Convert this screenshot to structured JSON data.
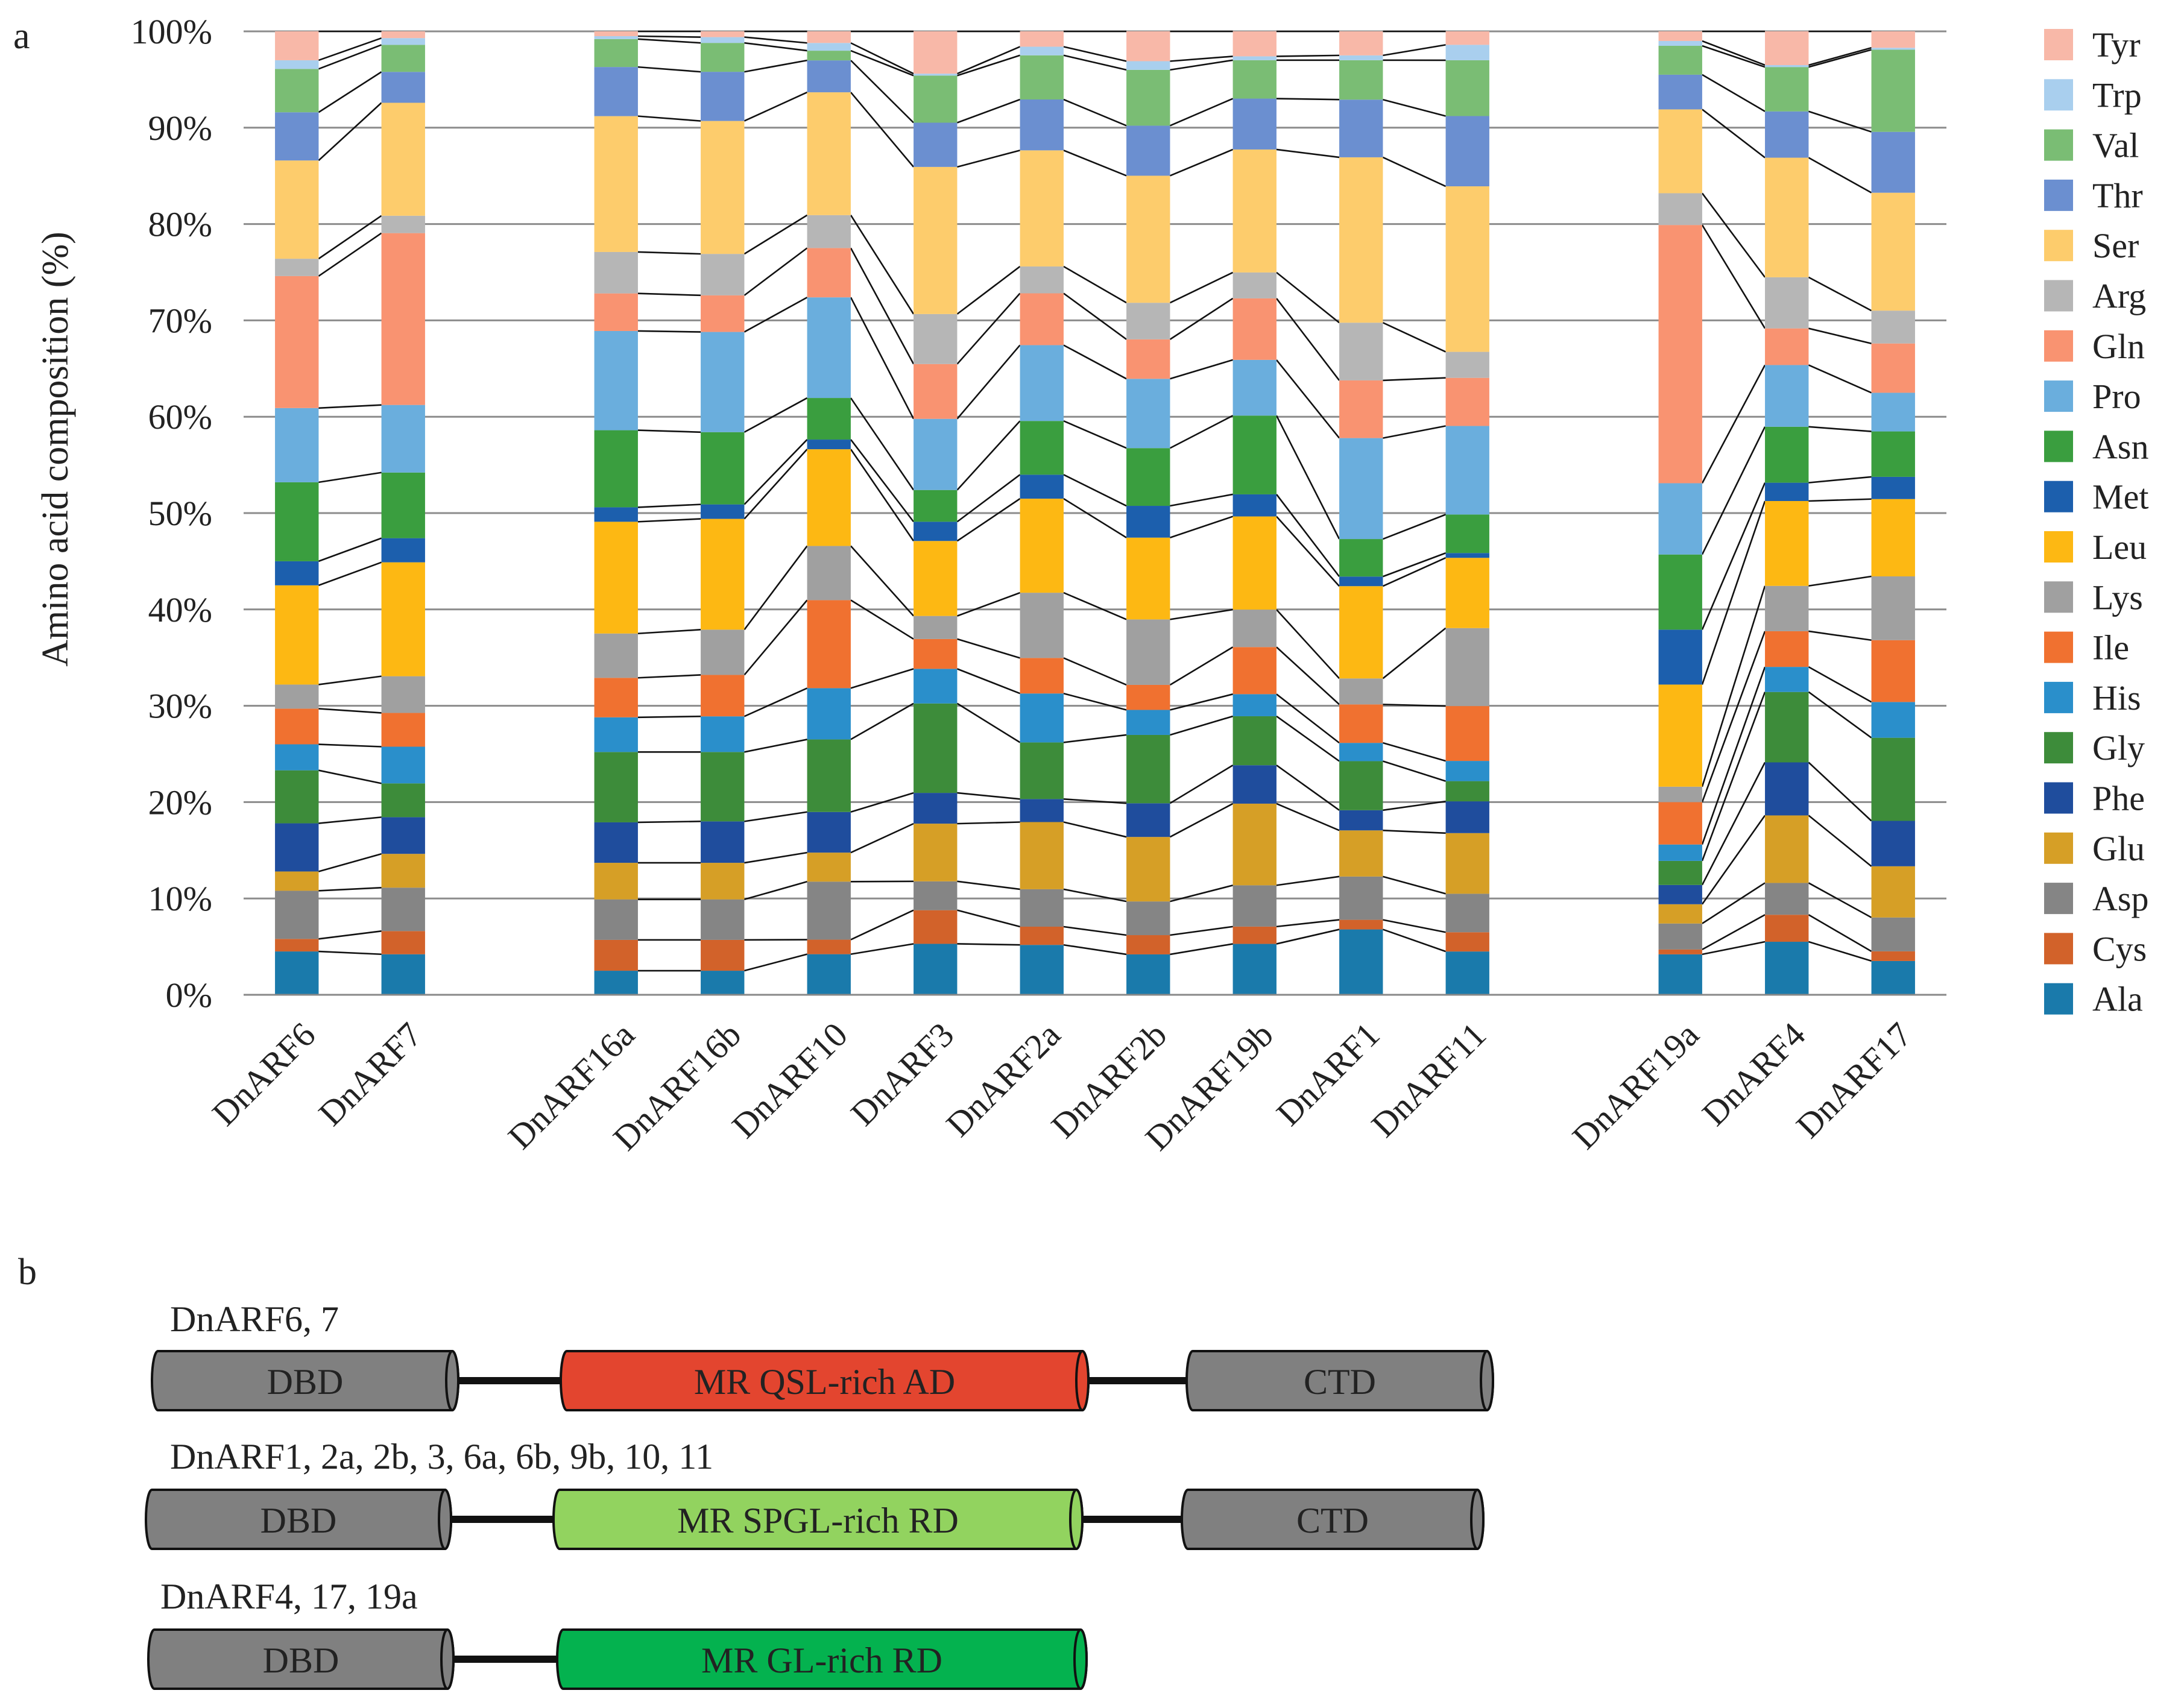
{
  "panel_a_label": "a",
  "panel_b_label": "b",
  "chart_data": {
    "type": "bar",
    "stacked": true,
    "percent": true,
    "ylabel": "Amino acid composition (%)",
    "xlabel": "",
    "ylim": [
      0,
      100
    ],
    "yticks": [
      "0%",
      "10%",
      "20%",
      "30%",
      "40%",
      "50%",
      "60%",
      "70%",
      "80%",
      "90%",
      "100%"
    ],
    "legend_position": "right",
    "categories": [
      "DnARF6",
      "DnARF7",
      "DnARF16a",
      "DnARF16b",
      "DnARF10",
      "DnARF3",
      "DnARF2a",
      "DnARF2b",
      "DnARF19b",
      "DnARF1",
      "DnARF11",
      "DnARF19a",
      "DnARF4",
      "DnARF17"
    ],
    "groups": [
      [
        0,
        1
      ],
      [
        2,
        3,
        4,
        5,
        6,
        7,
        8,
        9,
        10
      ],
      [
        11,
        12,
        13
      ]
    ],
    "series": [
      {
        "name": "Ala",
        "color": "#1a7aab",
        "values": [
          4.5,
          4.2,
          2.5,
          2.5,
          4.2,
          5.3,
          5.2,
          4.2,
          5.3,
          6.8,
          4.5,
          4.2,
          5.5,
          3.5
        ]
      },
      {
        "name": "Cys",
        "color": "#d2622a",
        "values": [
          1.3,
          2.4,
          3.2,
          3.2,
          1.5,
          3.5,
          1.9,
          2.0,
          1.8,
          1.0,
          2.0,
          0.5,
          2.8,
          1.0
        ]
      },
      {
        "name": "Asp",
        "color": "#858585",
        "values": [
          5.0,
          4.5,
          4.2,
          4.2,
          6.0,
          3.0,
          3.9,
          3.5,
          4.3,
          4.5,
          4.0,
          2.7,
          3.3,
          3.5
        ]
      },
      {
        "name": "Glu",
        "color": "#d69f26",
        "values": [
          2.0,
          3.5,
          3.8,
          3.8,
          3.0,
          6.0,
          7.0,
          6.7,
          8.5,
          4.8,
          6.3,
          2.0,
          7.0,
          5.3
        ]
      },
      {
        "name": "Phe",
        "color": "#1f4d9d",
        "values": [
          5.0,
          3.8,
          4.2,
          4.3,
          4.2,
          3.2,
          2.4,
          3.5,
          4.0,
          2.1,
          3.3,
          2.0,
          5.5,
          4.7
        ]
      },
      {
        "name": "Gly",
        "color": "#3d8c3a",
        "values": [
          5.5,
          3.5,
          7.3,
          7.2,
          7.5,
          9.3,
          5.9,
          7.1,
          5.1,
          5.1,
          2.1,
          2.5,
          7.3,
          8.6
        ]
      },
      {
        "name": "His",
        "color": "#2a8fcb",
        "values": [
          2.7,
          3.8,
          3.6,
          3.7,
          5.3,
          3.6,
          5.1,
          2.6,
          2.3,
          1.9,
          2.1,
          1.7,
          2.6,
          3.7
        ]
      },
      {
        "name": "Ile",
        "color": "#f07130",
        "values": [
          3.7,
          3.5,
          4.1,
          4.3,
          9.1,
          3.1,
          3.7,
          2.6,
          4.9,
          4.0,
          5.7,
          4.4,
          3.7,
          6.4
        ]
      },
      {
        "name": "Lys",
        "color": "#a0a0a0",
        "values": [
          2.5,
          3.8,
          4.6,
          4.7,
          5.6,
          2.4,
          6.8,
          6.8,
          3.9,
          2.7,
          8.1,
          1.6,
          4.7,
          6.6
        ]
      },
      {
        "name": "Leu",
        "color": "#fdb813",
        "values": [
          10.3,
          11.8,
          11.6,
          11.5,
          10.0,
          7.8,
          9.8,
          8.5,
          9.7,
          9.6,
          7.3,
          10.6,
          8.8,
          8.0
        ]
      },
      {
        "name": "Met",
        "color": "#1c5fad",
        "values": [
          2.5,
          2.5,
          1.5,
          1.5,
          1.0,
          2.0,
          2.5,
          3.3,
          2.3,
          1.0,
          0.5,
          5.7,
          1.9,
          2.3
        ]
      },
      {
        "name": "Asn",
        "color": "#3a9e3f",
        "values": [
          8.2,
          6.8,
          8.0,
          7.5,
          4.3,
          3.3,
          5.6,
          6.0,
          8.2,
          3.9,
          4.0,
          7.8,
          5.8,
          4.7
        ]
      },
      {
        "name": "Pro",
        "color": "#6aaedd",
        "values": [
          7.7,
          7.0,
          10.3,
          10.4,
          10.4,
          7.4,
          7.9,
          7.2,
          5.8,
          10.5,
          9.2,
          7.4,
          6.4,
          4.0
        ]
      },
      {
        "name": "Gln",
        "color": "#f99371",
        "values": [
          13.7,
          17.8,
          3.9,
          3.8,
          5.1,
          5.7,
          5.4,
          4.1,
          6.4,
          6.0,
          5.0,
          26.8,
          3.8,
          5.1
        ]
      },
      {
        "name": "Arg",
        "color": "#b6b6b6",
        "values": [
          1.8,
          1.8,
          4.3,
          4.3,
          3.4,
          5.2,
          2.8,
          3.8,
          2.7,
          6.0,
          2.7,
          3.3,
          5.3,
          3.4
        ]
      },
      {
        "name": "Ser",
        "color": "#fdcc6c",
        "values": [
          10.2,
          11.7,
          14.1,
          13.8,
          12.7,
          15.3,
          12.1,
          13.2,
          12.8,
          17.2,
          17.2,
          8.7,
          12.4,
          12.2
        ]
      },
      {
        "name": "Thr",
        "color": "#6b8fd0",
        "values": [
          5.0,
          3.2,
          5.1,
          5.1,
          3.3,
          4.6,
          5.3,
          5.2,
          5.3,
          6.0,
          7.3,
          3.6,
          4.8,
          6.3
        ]
      },
      {
        "name": "Val",
        "color": "#7abd74",
        "values": [
          4.5,
          2.8,
          2.9,
          3.0,
          1.0,
          4.9,
          4.6,
          5.8,
          4.0,
          4.1,
          5.8,
          3.0,
          4.6,
          8.5
        ]
      },
      {
        "name": "Trp",
        "color": "#a9cfee",
        "values": [
          0.9,
          0.7,
          0.3,
          0.6,
          0.8,
          0.2,
          0.9,
          0.9,
          0.4,
          0.5,
          1.6,
          0.5,
          0.2,
          0.2
        ]
      },
      {
        "name": "Tyr",
        "color": "#f8b8a8",
        "values": [
          3.0,
          0.7,
          0.5,
          0.6,
          1.2,
          4.4,
          1.6,
          3.1,
          2.6,
          2.5,
          1.4,
          1.0,
          3.5,
          1.7
        ]
      }
    ]
  },
  "domain_rows": [
    {
      "title": "DnARF6, 7",
      "dbd": {
        "label": "DBD",
        "color": "#808080"
      },
      "mr": {
        "label": "MR QSL-rich AD",
        "color": "#e3452f"
      },
      "ctd": {
        "label": "CTD",
        "color": "#808080"
      }
    },
    {
      "title": "DnARF1, 2a, 2b, 3, 6a, 6b, 9b, 10, 11",
      "dbd": {
        "label": "DBD",
        "color": "#808080"
      },
      "mr": {
        "label": "MR SPGL-rich RD",
        "color": "#92d35f"
      },
      "ctd": {
        "label": "CTD",
        "color": "#808080"
      }
    },
    {
      "title": "DnARF4,  17, 19a",
      "dbd": {
        "label": "DBD",
        "color": "#808080"
      },
      "mr": {
        "label": "MR GL-rich RD",
        "color": "#04b24f"
      }
    }
  ]
}
